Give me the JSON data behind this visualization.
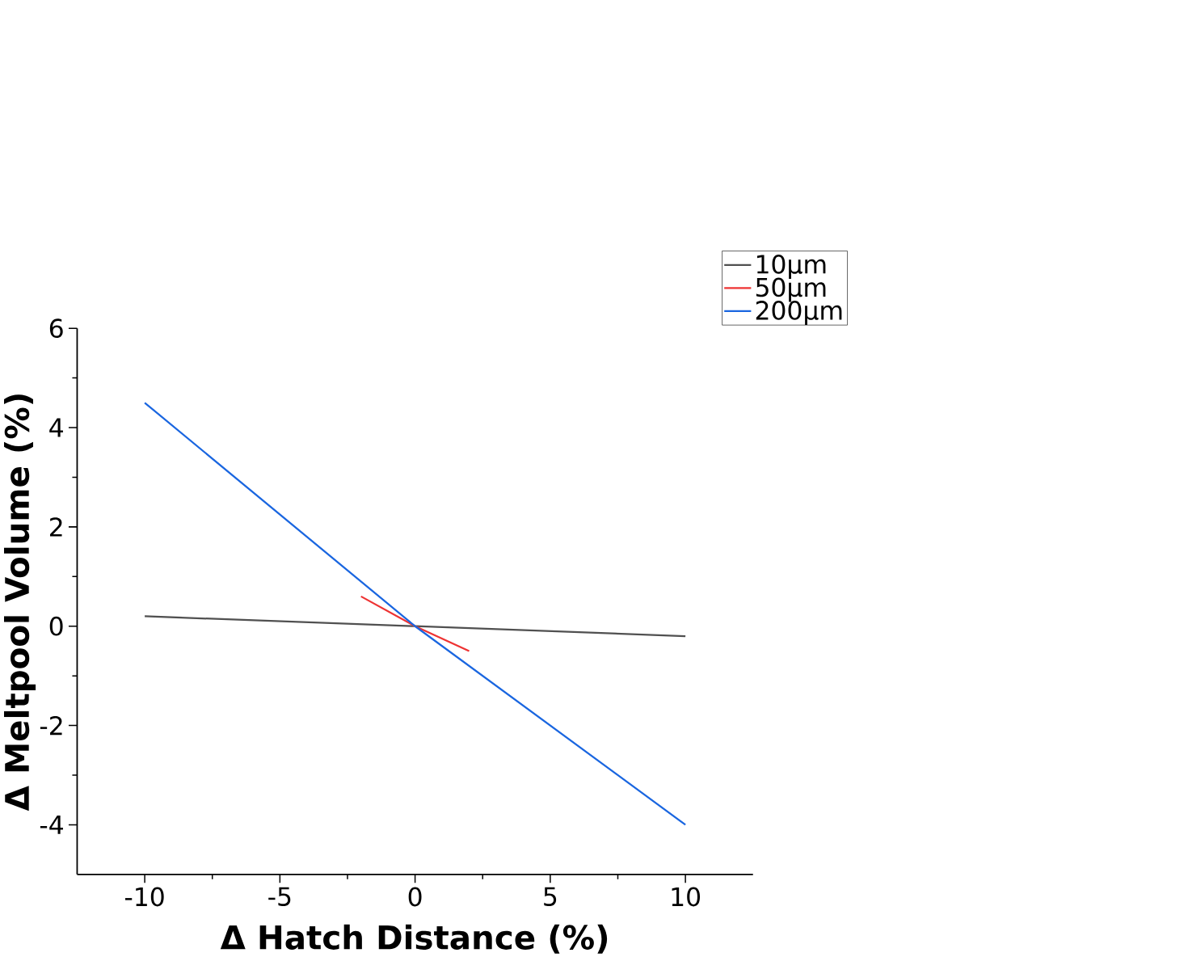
{
  "chart_data": {
    "type": "line",
    "xlabel": "Δ Hatch Distance (%)",
    "ylabel": "Δ Meltpool Volume (%)",
    "xlim": [
      -12.5,
      12.5
    ],
    "ylim": [
      -5,
      6
    ],
    "xticks": [
      -10,
      -5,
      0,
      5,
      10
    ],
    "yticks": [
      -4,
      -2,
      0,
      2,
      4,
      6
    ],
    "legend": "top right",
    "grid": false,
    "marker": "none",
    "line_style": "solid",
    "series": [
      {
        "name": "10μm",
        "color": "#505050",
        "x": [
          -10,
          0,
          10
        ],
        "values": [
          0.2,
          0,
          -0.2
        ]
      },
      {
        "name": "50μm",
        "color": "#ee3333",
        "x": [
          -2,
          0,
          2
        ],
        "values": [
          0.6,
          0,
          -0.5
        ]
      },
      {
        "name": "200μm",
        "color": "#1a66e0",
        "x": [
          -10,
          0,
          10
        ],
        "values": [
          4.5,
          0,
          -4
        ]
      }
    ]
  }
}
